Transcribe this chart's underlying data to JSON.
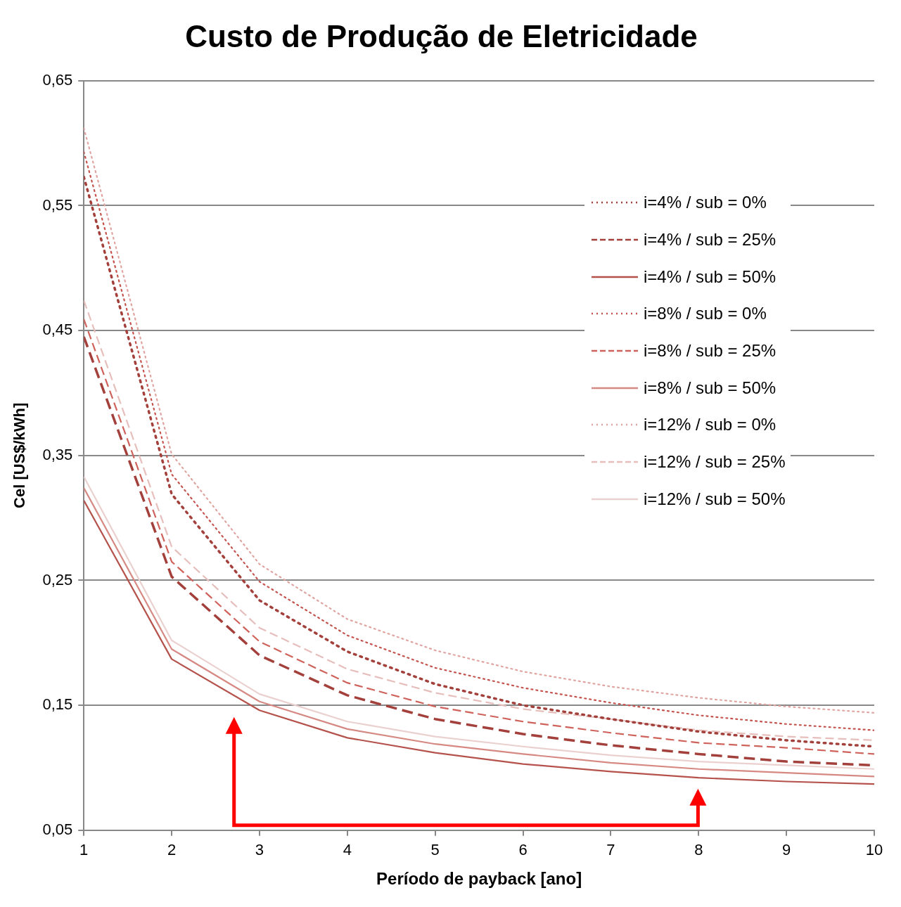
{
  "chart_data": {
    "type": "line",
    "title": "Custo de Produção de Eletricidade",
    "xlabel": "Período de payback [ano]",
    "ylabel": "Cel [US$/kWh]",
    "x": [
      1,
      2,
      3,
      4,
      5,
      6,
      7,
      8,
      9,
      10
    ],
    "xlim": [
      1,
      10
    ],
    "xticks": [
      1,
      2,
      3,
      4,
      5,
      6,
      7,
      8,
      9,
      10
    ],
    "ylim": [
      0.05,
      0.65
    ],
    "yticks": [
      {
        "value": 0.05,
        "label": "0,05"
      },
      {
        "value": 0.15,
        "label": "0,15"
      },
      {
        "value": 0.25,
        "label": "0,25"
      },
      {
        "value": 0.35,
        "label": "0,35"
      },
      {
        "value": 0.45,
        "label": "0,45"
      },
      {
        "value": 0.55,
        "label": "0,55"
      },
      {
        "value": 0.65,
        "label": "0,65"
      }
    ],
    "grid": "y",
    "legend": "right",
    "marker": "none",
    "series": [
      {
        "name": "i=4% / sub = 0%",
        "color": "#a3403b",
        "line_style": "dotted",
        "values": [
          0.573,
          0.319,
          0.234,
          0.193,
          0.167,
          0.15,
          0.139,
          0.129,
          0.122,
          0.117
        ]
      },
      {
        "name": "i=4% / sub = 25%",
        "color": "#a3403b",
        "line_style": "dashed",
        "values": [
          0.445,
          0.253,
          0.19,
          0.158,
          0.139,
          0.127,
          0.118,
          0.111,
          0.105,
          0.102
        ]
      },
      {
        "name": "i=4% / sub = 50%",
        "color": "#b5524c",
        "line_style": "solid",
        "values": [
          0.314,
          0.187,
          0.146,
          0.124,
          0.112,
          0.103,
          0.097,
          0.092,
          0.089,
          0.087
        ]
      },
      {
        "name": "i=8% / sub = 0%",
        "color": "#c4534d",
        "line_style": "dotted",
        "values": [
          0.593,
          0.335,
          0.249,
          0.206,
          0.18,
          0.164,
          0.152,
          0.142,
          0.135,
          0.13
        ]
      },
      {
        "name": "i=8% / sub = 25%",
        "color": "#cf625b",
        "line_style": "dashed",
        "values": [
          0.459,
          0.265,
          0.201,
          0.168,
          0.149,
          0.137,
          0.128,
          0.12,
          0.116,
          0.111
        ]
      },
      {
        "name": "i=8% / sub = 50%",
        "color": "#d68983",
        "line_style": "solid",
        "values": [
          0.324,
          0.195,
          0.153,
          0.131,
          0.119,
          0.111,
          0.104,
          0.099,
          0.096,
          0.093
        ]
      },
      {
        "name": "i=12% / sub = 0%",
        "color": "#e0a4a0",
        "line_style": "dotted",
        "values": [
          0.612,
          0.351,
          0.263,
          0.219,
          0.194,
          0.177,
          0.165,
          0.156,
          0.149,
          0.144
        ]
      },
      {
        "name": "i=12% / sub = 25%",
        "color": "#e6bebb",
        "line_style": "dashed",
        "values": [
          0.474,
          0.277,
          0.212,
          0.179,
          0.16,
          0.147,
          0.139,
          0.13,
          0.125,
          0.122
        ]
      },
      {
        "name": "i=12% / sub = 50%",
        "color": "#ead0ce",
        "line_style": "solid",
        "values": [
          0.333,
          0.202,
          0.159,
          0.137,
          0.125,
          0.117,
          0.11,
          0.105,
          0.102,
          0.099
        ]
      }
    ]
  }
}
